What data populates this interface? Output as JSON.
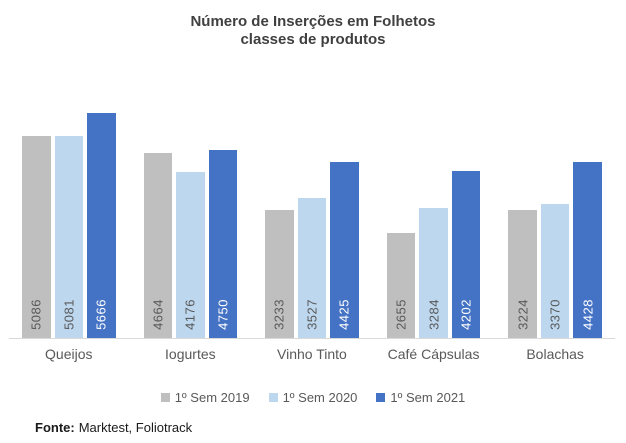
{
  "chart_data": {
    "type": "bar",
    "title": "Número de Inserções em Folhetos",
    "subtitle": "classes de produtos",
    "categories": [
      "Queijos",
      "Iogurtes",
      "Vinho Tinto",
      "Café Cápsulas",
      "Bolachas"
    ],
    "series": [
      {
        "name": "1º Sem 2019",
        "color": "#BFBFBF",
        "label_color": "#595959",
        "values": [
          5086,
          4664,
          3233,
          2655,
          3224
        ]
      },
      {
        "name": "1º Sem 2020",
        "color": "#BDD7EE",
        "label_color": "#595959",
        "values": [
          5081,
          4176,
          3527,
          3284,
          3370
        ]
      },
      {
        "name": "1º Sem 2021",
        "color": "#4472C4",
        "label_color": "#FFFFFF",
        "values": [
          5666,
          4750,
          4425,
          4202,
          4428
        ]
      }
    ],
    "xlabel": "",
    "ylabel": "",
    "ylim": [
      0,
      6000
    ],
    "grid": false,
    "y_axis_visible": false,
    "axis_line_color": "#D9D9D9",
    "data_labels": "inside-base, rotated 90° counterclockwise",
    "legend_position": "bottom"
  },
  "footer": {
    "source_label": "Fonte:",
    "source_text": "Marktest, Foliotrack"
  },
  "colors": {
    "background": "#FFFFFF",
    "title_text": "#404040",
    "category_text": "#595959",
    "legend_text": "#595959",
    "axis_line": "#D9D9D9"
  }
}
